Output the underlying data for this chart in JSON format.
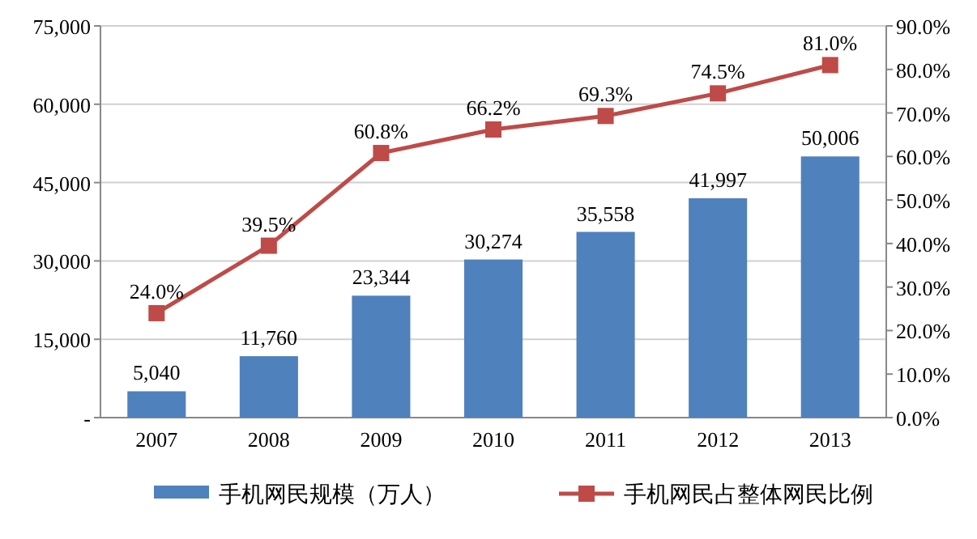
{
  "chart_data": {
    "type": "bar",
    "categories": [
      "2007",
      "2008",
      "2009",
      "2010",
      "2011",
      "2012",
      "2013"
    ],
    "series": [
      {
        "name": "手机网民规模（万人）",
        "color": "#4f81bd",
        "values": [
          5040,
          11760,
          23344,
          30274,
          35558,
          41997,
          50006
        ],
        "value_labels": [
          "5,040",
          "11,760",
          "23,344",
          "30,274",
          "35,558",
          "41,997",
          "50,006"
        ]
      },
      {
        "name": "手机网民占整体网民比例",
        "type": "line",
        "axis": "y2",
        "color": "#be4b48",
        "values": [
          24.0,
          39.5,
          60.8,
          66.2,
          69.3,
          74.5,
          81.0
        ],
        "value_labels": [
          "24.0%",
          "39.5%",
          "60.8%",
          "66.2%",
          "69.3%",
          "74.5%",
          "81.0%"
        ]
      }
    ],
    "ylim": [
      0,
      75000
    ],
    "yticks": [
      {
        "value": 0,
        "label": "-"
      },
      {
        "value": 15000,
        "label": "15,000"
      },
      {
        "value": 30000,
        "label": "30,000"
      },
      {
        "value": 45000,
        "label": "45,000"
      },
      {
        "value": 60000,
        "label": "60,000"
      },
      {
        "value": 75000,
        "label": "75,000"
      }
    ],
    "y2lim": [
      0,
      90
    ],
    "y2ticks": [
      {
        "value": 0,
        "label": "0.0%"
      },
      {
        "value": 10,
        "label": "10.0%"
      },
      {
        "value": 20,
        "label": "20.0%"
      },
      {
        "value": 30,
        "label": "30.0%"
      },
      {
        "value": 40,
        "label": "40.0%"
      },
      {
        "value": 50,
        "label": "50.0%"
      },
      {
        "value": 60,
        "label": "60.0%"
      },
      {
        "value": 70,
        "label": "70.0%"
      },
      {
        "value": 80,
        "label": "80.0%"
      },
      {
        "value": 90,
        "label": "90.0%"
      }
    ],
    "grid": "y",
    "legend": "bottom",
    "marker": "square",
    "line_style": "solid"
  }
}
